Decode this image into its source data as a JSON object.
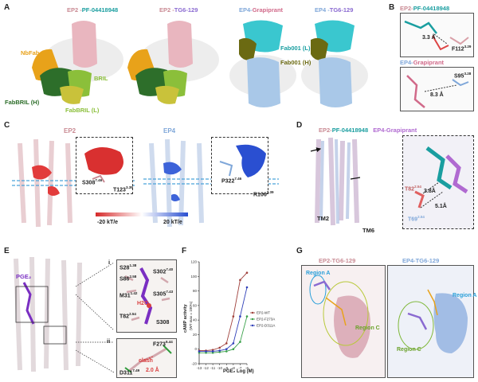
{
  "panels": {
    "A": {
      "label": "A",
      "titles": [
        {
          "pre": "EP2 -",
          "post": "PF-04418948"
        },
        {
          "pre": "EP2 -",
          "post": "TG6-129"
        },
        {
          "pre": "EP4-",
          "post": "Grapiprant"
        },
        {
          "pre": "EP4 -",
          "post": "TG6-129"
        }
      ],
      "labels": {
        "nbfab": "NbFab",
        "bril": "BRIL",
        "fabbril_h": "FabBRIL (H)",
        "fabbril_l": "FabBRIL (L)",
        "fab001_l": "Fab001 (L)",
        "fab001_h": "Fab001 (H)"
      }
    },
    "B": {
      "label": "B",
      "top_title": {
        "pre": "EP2-",
        "post": "PF-04418948"
      },
      "top_dist": "3.3 Å",
      "top_res": "F112",
      "top_res_sup": "3.29",
      "bottom_title": {
        "pre": "EP4-",
        "post": "Grapiprant"
      },
      "bottom_dist": "8.3 Å",
      "bottom_res": "S95",
      "bottom_res_sup": "3.28"
    },
    "C": {
      "label": "C",
      "ep2": "EP2",
      "ep4": "EP4",
      "res1": "S308",
      "res1_sup": "7.46",
      "res2": "T123",
      "res2_sup": "3.39",
      "res3": "P322",
      "res3_sup": "7.46",
      "res4": "R106",
      "res4_sup": "3.39",
      "scale_neg": "-20 kT/e",
      "scale_pos": "20 kT/e"
    },
    "D": {
      "label": "D",
      "title_a": {
        "pre": "EP2-",
        "post": "PF-04418948"
      },
      "title_b": "EP4-Grapiprant",
      "tm2": "TM2",
      "tm6": "TM6",
      "dist1": "3.8Å",
      "dist2": "5.1Å",
      "res1": "T82",
      "res1_sup": "2.54",
      "res2": "T69",
      "res2_sup": "2.54"
    },
    "E": {
      "label": "E",
      "ligand": "PGE₂",
      "sub_i": "i",
      "sub_ii": "ii",
      "residues": [
        {
          "name": "S28",
          "sup": "1.38"
        },
        {
          "name": "S86",
          "sup": "2.58"
        },
        {
          "name": "S302",
          "sup": "7.40"
        },
        {
          "name": "M31",
          "sup": "1.42"
        },
        {
          "name": "S305",
          "sup": "7.43"
        },
        {
          "name": "H2O",
          "sup": ""
        },
        {
          "name": "T82",
          "sup": "2.54"
        },
        {
          "name": "S308",
          "sup": ""
        }
      ],
      "res_f": "F273",
      "res_f_sup": "6.44",
      "clash": "clash",
      "res_d": "D311",
      "res_d_sup": "7.49",
      "clash_dist": "2.0 Å"
    },
    "F": {
      "label": "F",
      "ylabel": "cAMP activity",
      "ylabel2": "(WT max = 100%)",
      "xlabel": "PGE₂ Log (M)"
    },
    "G": {
      "label": "G",
      "left_title": "EP2-TG6-129",
      "right_title": "EP4-TG6-129",
      "region_a": "Region A",
      "region_c": "Region C"
    }
  },
  "chart_data": {
    "type": "line",
    "xlabel": "PGE₂ Log (M)",
    "ylabel": "cAMP activity (WT max = 100%)",
    "x": [
      -13,
      -12,
      -11,
      -10,
      -9,
      -8,
      -7,
      -6
    ],
    "xlim": [
      -13,
      -6
    ],
    "ylim": [
      -20,
      120
    ],
    "yticks": [
      -20,
      0,
      20,
      40,
      60,
      80,
      100,
      120
    ],
    "legend": "right",
    "series": [
      {
        "name": "EP2-WT",
        "color": "#a0413c",
        "values": [
          -2,
          -2,
          -1,
          2,
          8,
          45,
          95,
          105
        ]
      },
      {
        "name": "EP2-F273A",
        "color": "#3aa14a",
        "values": [
          -5,
          -5,
          -5,
          -4,
          -3,
          0,
          10,
          45
        ]
      },
      {
        "name": "EP2-D311A",
        "color": "#2f3fb8",
        "values": [
          -3,
          -3,
          -3,
          -2,
          0,
          8,
          45,
          85
        ]
      }
    ]
  },
  "colors": {
    "ep2": "#c98a93",
    "pf": "#1a9ea0",
    "tg": "#8a6ad1",
    "grap": "#d16a8a",
    "ep4": "#7fa7d9",
    "nbfab": "#e8a21a",
    "bril": "#8bbf3a",
    "fabbril": "#2d6e2a",
    "fab001": "#6b6a12",
    "fabcyan": "#3ac7cf"
  }
}
